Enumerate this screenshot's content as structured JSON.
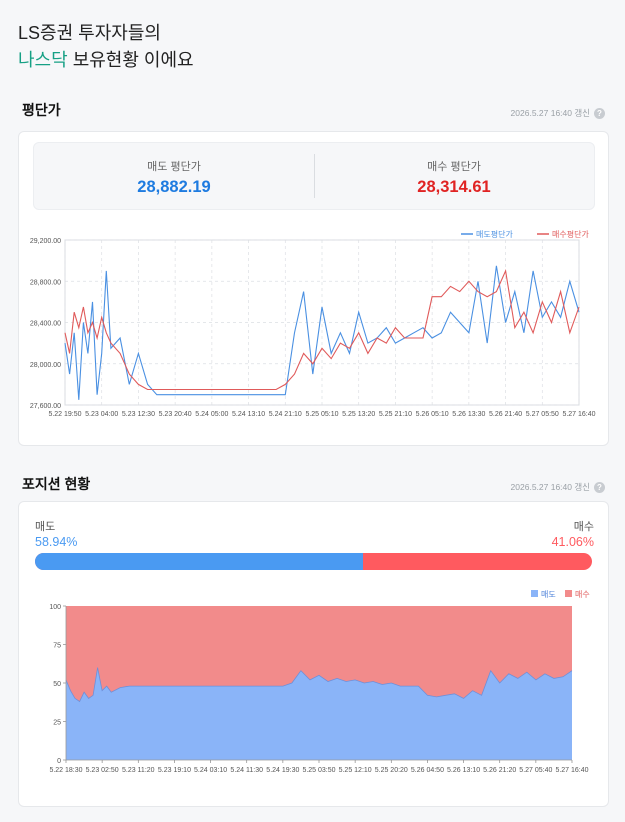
{
  "hero": {
    "line1": "LS증권 투자자들의",
    "accent": "나스닥",
    "line2_rest": " 보유현황 이에요"
  },
  "avg_section": {
    "title": "평단가",
    "updated": "2026.5.27 16:40 갱신",
    "help_icon": "help-icon"
  },
  "sell_avg": {
    "label": "매도 평단가",
    "value": "28,882.19",
    "color": "#1e7be0"
  },
  "buy_avg": {
    "label": "매수 평단가",
    "value": "28,314.61",
    "color": "#e02323"
  },
  "position_section": {
    "title": "포지션 현황",
    "updated": "2026.5.27 16:40 갱신",
    "help_icon": "help-icon"
  },
  "position": {
    "sell_label": "매도",
    "buy_label": "매수",
    "sell_pct_text": "58.94%",
    "buy_pct_text": "41.06%",
    "sell_fraction": 0.5894,
    "sell_color": "#4a9af2",
    "buy_color": "#ff5a5f"
  },
  "chart_data": [
    {
      "type": "line",
      "grid": true,
      "legend_position": "top-right",
      "ylim": [
        27600,
        29200
      ],
      "y_ticks": [
        27600,
        28000,
        28400,
        28800,
        29200
      ],
      "y_tick_labels": [
        "27,600.00",
        "28,000.00",
        "28,400.00",
        "28,800.00",
        "29,200.00"
      ],
      "x_tick_labels": [
        "5.22 19:50",
        "5.23 04:00",
        "5.23 12:30",
        "5.23 20:40",
        "5.24 05:00",
        "5.24 13:10",
        "5.24 21:10",
        "5.25 05:10",
        "5.25 13:20",
        "5.25 21:10",
        "5.26 05:10",
        "5.26 13:30",
        "5.26 21:40",
        "5.27 05:50",
        "5.27 16:40"
      ],
      "series": [
        {
          "name": "매도평단가",
          "color": "#4a90e2",
          "x": [
            0,
            0.5,
            1,
            1.5,
            2,
            2.5,
            3,
            3.5,
            4,
            4.5,
            5,
            6,
            7,
            8,
            9,
            10,
            11,
            12,
            13,
            14,
            15,
            16,
            17,
            18,
            19,
            20,
            21,
            22,
            23,
            24,
            25,
            26,
            27,
            28,
            29,
            30,
            31,
            32,
            33,
            34,
            35,
            36,
            37,
            38,
            39,
            40,
            41,
            42,
            43,
            44,
            45,
            46,
            47,
            48,
            49,
            50,
            51,
            52,
            53,
            54,
            55,
            56
          ],
          "values": [
            28200,
            27900,
            28300,
            27650,
            28400,
            28100,
            28600,
            27700,
            28100,
            28900,
            28150,
            28250,
            27800,
            28100,
            27800,
            27700,
            27700,
            27700,
            27700,
            27700,
            27700,
            27700,
            27700,
            27700,
            27700,
            27700,
            27700,
            27700,
            27700,
            27700,
            28300,
            28700,
            27900,
            28550,
            28100,
            28300,
            28100,
            28500,
            28200,
            28250,
            28350,
            28200,
            28250,
            28300,
            28350,
            28250,
            28300,
            28500,
            28400,
            28300,
            28800,
            28200,
            28950,
            28400,
            28700,
            28300,
            28900,
            28450,
            28600,
            28450,
            28800,
            28500
          ]
        },
        {
          "name": "매수평단가",
          "color": "#e05a5a",
          "x": [
            0,
            0.5,
            1,
            1.5,
            2,
            2.5,
            3,
            3.5,
            4,
            4.5,
            5,
            6,
            7,
            8,
            9,
            10,
            11,
            12,
            13,
            14,
            15,
            16,
            17,
            18,
            19,
            20,
            21,
            22,
            23,
            24,
            25,
            26,
            27,
            28,
            29,
            30,
            31,
            32,
            33,
            34,
            35,
            36,
            37,
            38,
            39,
            40,
            41,
            42,
            43,
            44,
            45,
            46,
            47,
            48,
            49,
            50,
            51,
            52,
            53,
            54,
            55,
            56
          ],
          "values": [
            28300,
            28100,
            28500,
            28350,
            28550,
            28300,
            28400,
            28250,
            28450,
            28300,
            28200,
            28100,
            27900,
            27800,
            27750,
            27750,
            27750,
            27750,
            27750,
            27750,
            27750,
            27750,
            27750,
            27750,
            27750,
            27750,
            27750,
            27750,
            27750,
            27800,
            27900,
            28100,
            28000,
            28150,
            28050,
            28200,
            28150,
            28300,
            28100,
            28250,
            28200,
            28350,
            28250,
            28250,
            28250,
            28650,
            28650,
            28750,
            28700,
            28800,
            28700,
            28650,
            28700,
            28900,
            28350,
            28500,
            28300,
            28600,
            28400,
            28700,
            28300,
            28550
          ]
        }
      ]
    },
    {
      "type": "area",
      "grid": true,
      "legend_position": "top-right",
      "ylim": [
        0,
        100
      ],
      "y_ticks": [
        0,
        25,
        50,
        75,
        100
      ],
      "y_tick_labels": [
        "0",
        "25",
        "50",
        "75",
        "100"
      ],
      "x_tick_labels": [
        "5.22 18:30",
        "5.23 02:50",
        "5.23 11:20",
        "5.23 19:10",
        "5.24 03:10",
        "5.24 11:30",
        "5.24 19:30",
        "5.25 03:50",
        "5.25 12:10",
        "5.25 20:20",
        "5.26 04:50",
        "5.26 13:10",
        "5.26 21:20",
        "5.27 05:40",
        "5.27 16:40"
      ],
      "series": [
        {
          "name": "매도",
          "color": "#8ab4f8",
          "x": [
            0,
            0.5,
            1,
            1.5,
            2,
            2.5,
            3,
            3.5,
            4,
            4.5,
            5,
            6,
            7,
            8,
            9,
            10,
            11,
            12,
            13,
            14,
            15,
            16,
            17,
            18,
            19,
            20,
            21,
            22,
            23,
            24,
            25,
            26,
            27,
            28,
            29,
            30,
            31,
            32,
            33,
            34,
            35,
            36,
            37,
            38,
            39,
            40,
            41,
            42,
            43,
            44,
            45,
            46,
            47,
            48,
            49,
            50,
            51,
            52,
            53,
            54,
            55,
            56
          ],
          "values": [
            52,
            45,
            40,
            38,
            44,
            40,
            42,
            60,
            45,
            48,
            44,
            47,
            48,
            48,
            48,
            48,
            48,
            48,
            48,
            48,
            48,
            48,
            48,
            48,
            48,
            48,
            48,
            48,
            48,
            48,
            50,
            58,
            52,
            55,
            51,
            53,
            51,
            52,
            50,
            51,
            49,
            50,
            48,
            48,
            48,
            42,
            41,
            42,
            43,
            40,
            45,
            42,
            58,
            50,
            56,
            53,
            57,
            52,
            56,
            53,
            54,
            58
          ]
        },
        {
          "name": "매수",
          "color": "#f28b8b",
          "note_total": 100
        }
      ]
    }
  ]
}
